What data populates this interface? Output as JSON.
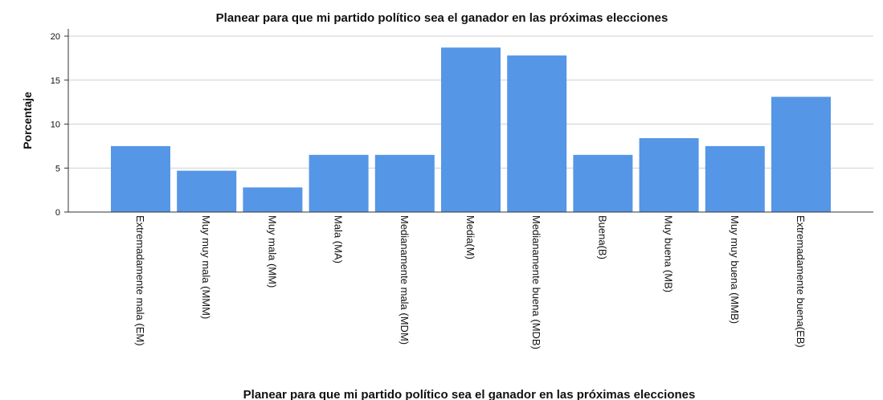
{
  "chart_data": {
    "type": "bar",
    "title": "Planear para que mi partido político sea el ganador en las próximas elecciones",
    "xlabel": "Planear para que mi partido político sea el ganador en las próximas elecciones",
    "ylabel": "Porcentaje",
    "ylim": [
      0,
      21
    ],
    "yticks": [
      "0",
      "5",
      "10",
      "15",
      "20"
    ],
    "grid": true,
    "bar_color": "#5596e6",
    "categories": [
      "Extremadamente mala (EM)",
      "Muy muy mala (MMM)",
      "Muy mala (MM)",
      "Mala (MA)",
      "Medianamente mala (MDM)",
      "Media(M)",
      "Medianamente buena (MDB)",
      "Buena(B)",
      "Muy buena (MB)",
      "Muy muy buena (MMB)",
      "Extremadamente buena(EB)"
    ],
    "values": [
      7.5,
      4.7,
      2.8,
      6.5,
      6.5,
      18.7,
      17.8,
      6.5,
      8.4,
      7.5,
      13.1
    ]
  }
}
